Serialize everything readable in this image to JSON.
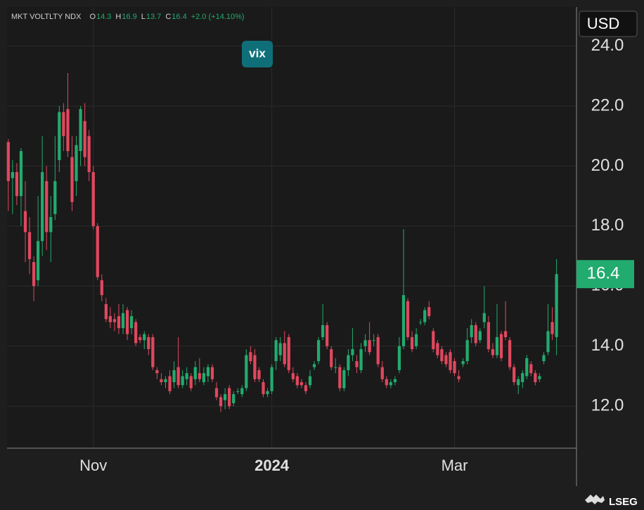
{
  "header": {
    "name": "MKT VOLTLTY NDX",
    "ohlc": [
      {
        "label": "O",
        "value": 14.3
      },
      {
        "label": "H",
        "value": 16.9
      },
      {
        "label": "L",
        "value": 13.7
      },
      {
        "label": "C",
        "value": 16.4
      }
    ],
    "change": "+2.0 (+14.10%)",
    "currency": "USD",
    "badge": "vix",
    "brand": "LSEG"
  },
  "chart_data": {
    "type": "candlestick",
    "up_color": "#22ab6e",
    "down_color": "#e0485e",
    "grid": true,
    "xlim": [
      -0.3,
      133.7
    ],
    "ylim": [
      10.6,
      25.3
    ],
    "xticks": [
      {
        "value": 20,
        "label": "Nov"
      },
      {
        "value": 62,
        "label": "2024"
      },
      {
        "value": 105,
        "label": "Mar"
      }
    ],
    "yticks": [
      {
        "value": 12,
        "label": "12.0"
      },
      {
        "value": 14,
        "label": "14.0"
      },
      {
        "value": 16,
        "label": "16.0"
      },
      {
        "value": 18,
        "label": "18.0"
      },
      {
        "value": 20,
        "label": "20.0"
      },
      {
        "value": 22,
        "label": "22.0"
      },
      {
        "value": 24,
        "label": "24.0"
      }
    ],
    "open": [
      20.8,
      19.6,
      19.8,
      19.0,
      18.5,
      17.8,
      16.8,
      16.2,
      17.5,
      19.5,
      17.8,
      18.4,
      20.2,
      21.8,
      21.9,
      20.3,
      19.5,
      20.5,
      21.5,
      21.0,
      19.8,
      18.0,
      16.2,
      15.4,
      15.0,
      14.9,
      15.0,
      14.6,
      15.2,
      14.6,
      14.8,
      14.3,
      14.2,
      14.3,
      14.3,
      13.2,
      12.9,
      12.8,
      13.0,
      12.8,
      13.3,
      12.7,
      12.9,
      13.0,
      12.9,
      13.1,
      12.8,
      13.0,
      13.3,
      12.6,
      12.3,
      12.2,
      12.6,
      12.1,
      12.5,
      12.4,
      12.6,
      13.8,
      13.7,
      13.2,
      12.8,
      12.4,
      12.5,
      13.5,
      13.7,
      14.1,
      14.3,
      13.1,
      13.0,
      12.8,
      12.7,
      12.7,
      13.3,
      13.5,
      14.3,
      14.7,
      13.9,
      13.3,
      13.3,
      12.6,
      13.2,
      13.7,
      13.5,
      13.2,
      14.0,
      14.2,
      14.2,
      14.3,
      13.3,
      12.9,
      12.7,
      12.8,
      13.2,
      14.0,
      15.5,
      14.3,
      14.0,
      14.8,
      14.8,
      15.3,
      14.5,
      14.1,
      13.9,
      13.7,
      13.8,
      13.5,
      13.0,
      13.4,
      13.5,
      14.3,
      14.7,
      14.2,
      14.8,
      14.8,
      13.9,
      13.7,
      14.4,
      14.5,
      14.2,
      13.3,
      12.7,
      12.8,
      13.0,
      13.4,
      13.1,
      12.9,
      13.5,
      13.8,
      14.8,
      14.3
    ],
    "high": [
      20.9,
      20.2,
      20.1,
      20.6,
      19.5,
      18.3,
      17.0,
      19.0,
      21.0,
      20.0,
      19.0,
      21.0,
      22.0,
      22.1,
      23.1,
      21.0,
      21.0,
      22.0,
      22.1,
      21.2,
      20.0,
      18.1,
      16.4,
      15.6,
      15.3,
      15.1,
      15.4,
      15.4,
      15.3,
      15.2,
      14.9,
      14.4,
      14.5,
      14.4,
      14.4,
      13.3,
      13.1,
      13.0,
      13.2,
      13.5,
      14.3,
      13.2,
      13.3,
      13.1,
      13.5,
      13.6,
      13.3,
      13.4,
      13.4,
      12.8,
      12.4,
      12.6,
      12.7,
      12.5,
      12.6,
      12.7,
      13.9,
      14.0,
      13.9,
      13.3,
      12.9,
      12.6,
      13.4,
      14.3,
      14.3,
      14.5,
      14.4,
      13.3,
      13.1,
      12.9,
      12.8,
      13.2,
      13.5,
      14.3,
      15.4,
      14.8,
      14.0,
      13.6,
      13.4,
      13.3,
      13.9,
      14.6,
      13.7,
      14.1,
      14.4,
      14.8,
      14.4,
      14.4,
      13.5,
      13.0,
      12.9,
      13.0,
      14.3,
      17.9,
      15.6,
      14.5,
      14.6,
      14.9,
      15.3,
      15.5,
      14.6,
      14.2,
      14.0,
      13.8,
      13.9,
      13.6,
      13.2,
      13.6,
      14.6,
      14.9,
      14.8,
      14.6,
      16.0,
      15.0,
      14.1,
      15.4,
      14.5,
      15.5,
      14.3,
      13.4,
      13.0,
      13.2,
      13.7,
      13.5,
      13.2,
      13.1,
      13.8,
      15.4,
      15.3,
      16.9
    ],
    "low": [
      18.5,
      18.4,
      18.7,
      18.0,
      16.8,
      16.4,
      15.5,
      16.0,
      17.0,
      17.2,
      16.8,
      18.2,
      19.8,
      20.5,
      20.3,
      18.5,
      19.0,
      20.0,
      20.0,
      19.5,
      17.9,
      16.2,
      15.5,
      14.8,
      14.6,
      14.5,
      14.4,
      14.4,
      14.2,
      14.4,
      14.0,
      14.1,
      13.9,
      13.7,
      13.2,
      12.9,
      12.7,
      12.6,
      12.4,
      12.6,
      12.6,
      12.6,
      12.7,
      12.5,
      12.7,
      12.8,
      12.7,
      12.8,
      12.8,
      12.2,
      11.8,
      11.9,
      11.9,
      12.0,
      12.4,
      12.3,
      12.5,
      13.4,
      12.8,
      12.8,
      12.3,
      12.3,
      12.4,
      13.2,
      13.5,
      13.3,
      13.1,
      12.8,
      12.6,
      12.6,
      12.4,
      12.6,
      13.2,
      13.4,
      14.2,
      13.9,
      13.2,
      13.1,
      12.5,
      12.5,
      13.0,
      13.5,
      13.1,
      13.1,
      13.8,
      13.7,
      14.0,
      13.3,
      12.8,
      12.6,
      12.6,
      12.7,
      13.1,
      13.9,
      14.2,
      13.8,
      13.9,
      14.7,
      14.7,
      14.9,
      13.8,
      13.6,
      13.4,
      13.3,
      13.1,
      13.0,
      12.8,
      13.3,
      13.4,
      14.1,
      14.0,
      14.1,
      14.6,
      13.8,
      13.6,
      13.6,
      13.5,
      14.2,
      13.2,
      12.7,
      12.4,
      12.6,
      12.9,
      13.0,
      12.7,
      12.8,
      13.4,
      13.7,
      14.2,
      13.7
    ],
    "close": [
      19.5,
      19.8,
      19.0,
      20.5,
      17.8,
      16.9,
      16.0,
      17.5,
      19.8,
      17.8,
      18.3,
      19.5,
      21.8,
      21.0,
      20.5,
      18.8,
      20.7,
      21.9,
      20.3,
      19.8,
      18.0,
      16.3,
      15.7,
      14.9,
      14.8,
      14.8,
      14.6,
      15.1,
      14.4,
      15.0,
      14.1,
      14.2,
      14.4,
      13.9,
      13.3,
      13.1,
      12.8,
      12.9,
      12.5,
      13.2,
      12.7,
      13.0,
      13.1,
      12.6,
      13.3,
      12.9,
      13.1,
      13.3,
      12.9,
      12.3,
      12.0,
      12.4,
      12.0,
      12.4,
      12.5,
      12.6,
      13.7,
      13.5,
      12.9,
      12.9,
      12.4,
      12.5,
      13.3,
      14.2,
      14.1,
      13.4,
      13.2,
      12.9,
      12.7,
      12.7,
      12.5,
      13.0,
      13.4,
      14.2,
      14.7,
      14.0,
      13.3,
      13.3,
      12.6,
      13.2,
      13.7,
      13.9,
      13.3,
      13.9,
      14.2,
      13.8,
      14.2,
      13.4,
      12.9,
      12.7,
      12.8,
      12.9,
      14.0,
      15.7,
      14.3,
      13.9,
      14.4,
      14.8,
      15.2,
      15.0,
      13.9,
      13.7,
      13.5,
      13.4,
      13.2,
      13.1,
      12.9,
      13.5,
      14.2,
      14.7,
      14.1,
      14.5,
      15.1,
      13.9,
      13.7,
      14.3,
      13.6,
      14.3,
      13.3,
      12.8,
      12.9,
      13.1,
      13.6,
      13.1,
      12.8,
      13.0,
      13.7,
      14.5,
      14.4,
      16.4
    ]
  }
}
